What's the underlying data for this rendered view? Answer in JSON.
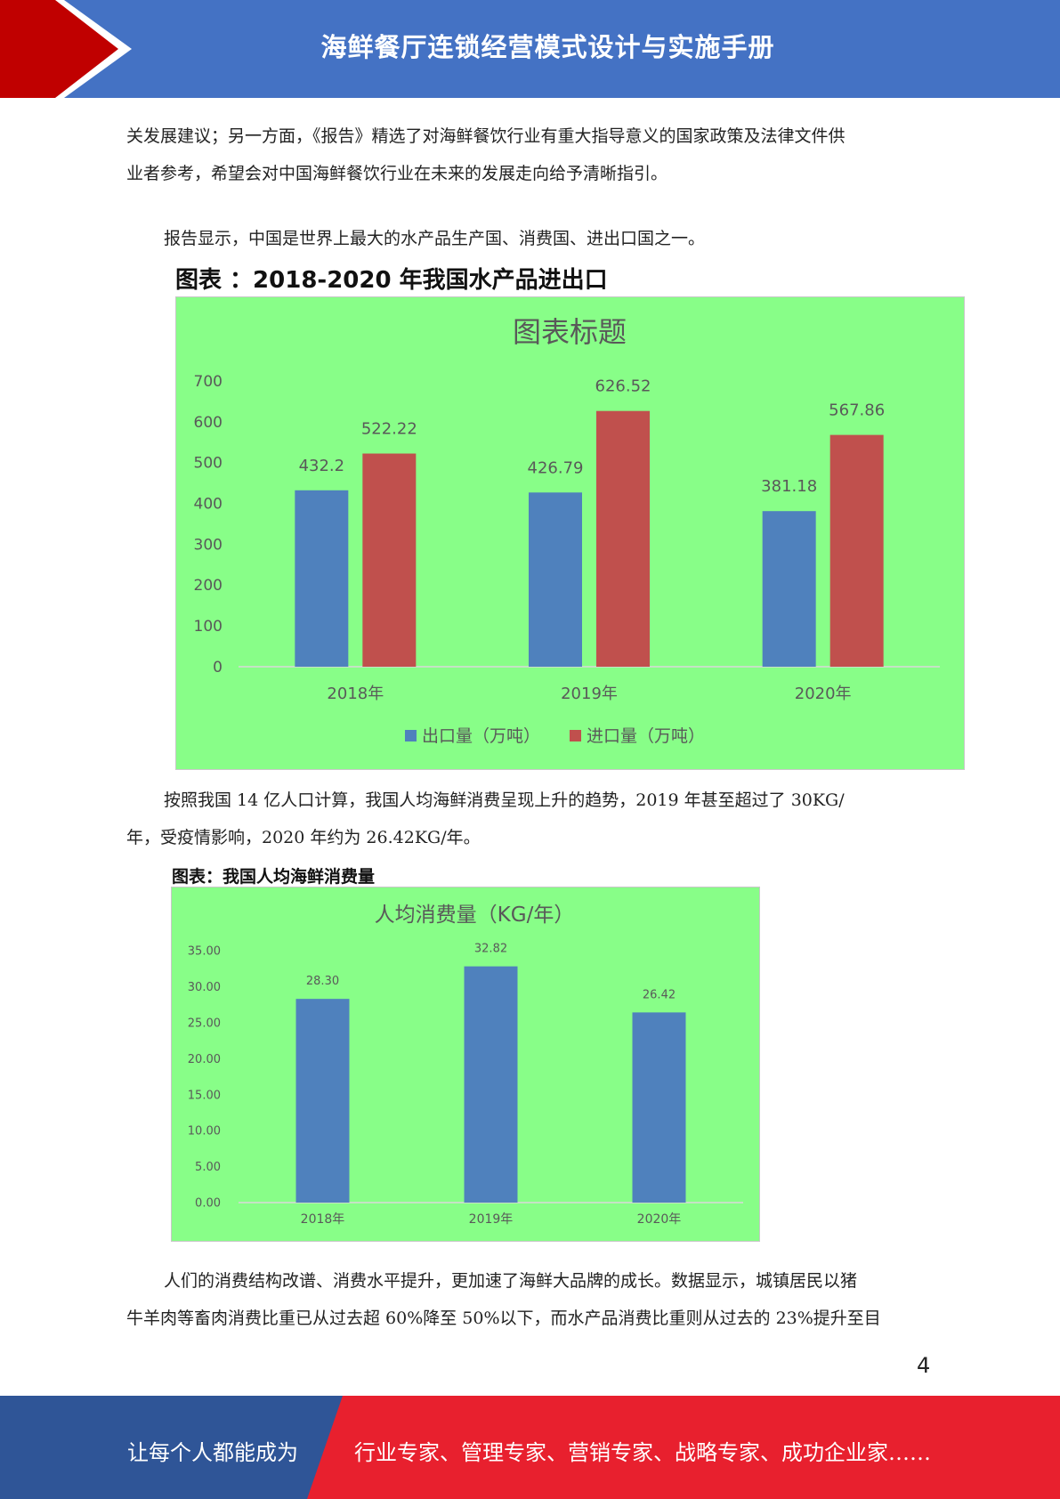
{
  "header": {
    "title": "海鲜餐厅连锁经营模式设计与实施手册",
    "colors": {
      "band": "#4472c4",
      "chevron": "#c00000"
    }
  },
  "paragraphs": {
    "p1": {
      "lines": [
        "关发展建议；另一方面，《报告》精选了对海鲜餐饮行业有重大指导意义的国家政策及法律文件供",
        "业者参考，希望会对中国海鲜餐饮行业在未来的发展走向给予清晰指引。"
      ]
    },
    "p2": {
      "lines": [
        "报告显示，中国是世界上最大的水产品生产国、消费国、进出口国之一。"
      ]
    },
    "p3": {
      "lines": [
        "按照我国 14 亿人口计算，我国人均海鲜消费呈现上升的趋势，2019 年甚至超过了 30KG/",
        "年，受疫情影响，2020 年约为 26.42KG/年。"
      ]
    },
    "p4": {
      "lines": [
        "人们的消费结构改谱、消费水平提升，更加速了海鲜大品牌的成长。数据显示，城镇居民以猪",
        "牛羊肉等畜肉消费比重已从过去超 60%降至 50%以下，而水产品消费比重则从过去的 23%提升至目"
      ]
    }
  },
  "chart1_caption": "图表 ：2018-2020 年我国水产品进出口",
  "chart2_caption": "图表：我国人均海鲜消费量",
  "chart_data": [
    {
      "type": "bar",
      "title": "图表标题",
      "categories": [
        "2018年",
        "2019年",
        "2020年"
      ],
      "series": [
        {
          "name": "出口量（万吨）",
          "values": [
            432.2,
            426.79,
            381.18
          ],
          "labels": [
            "432.2",
            "426.79",
            "381.18"
          ],
          "color": "#4f81bd"
        },
        {
          "name": "进口量（万吨）",
          "values": [
            522.22,
            626.52,
            567.86
          ],
          "labels": [
            "522.22",
            "626.52",
            "567.86"
          ],
          "color": "#c0504d"
        }
      ],
      "ylim": [
        0,
        700
      ],
      "yticks": [
        "0",
        "100",
        "200",
        "300",
        "400",
        "500",
        "600",
        "700"
      ],
      "legend": "bottom",
      "grid": false,
      "background": "#88fe88"
    },
    {
      "type": "bar",
      "title": "人均消费量（KG/年）",
      "categories": [
        "2018年",
        "2019年",
        "2020年"
      ],
      "series": [
        {
          "values": [
            28.3,
            32.82,
            26.42
          ],
          "labels": [
            "28.30",
            "32.82",
            "26.42"
          ],
          "color": "#4f81bd"
        }
      ],
      "ylim": [
        0,
        35
      ],
      "yticks": [
        "0.00",
        "5.00",
        "10.00",
        "15.00",
        "20.00",
        "25.00",
        "30.00",
        "35.00"
      ],
      "legend": "none",
      "grid": false,
      "background": "#88fe88"
    }
  ],
  "page_number": "4",
  "footer": {
    "left_text": "让每个人都能成为",
    "right_text": "行业专家、管理专家、营销专家、战略专家、成功企业家……",
    "colors": {
      "left": "#2f5597",
      "right": "#e8202e"
    }
  }
}
